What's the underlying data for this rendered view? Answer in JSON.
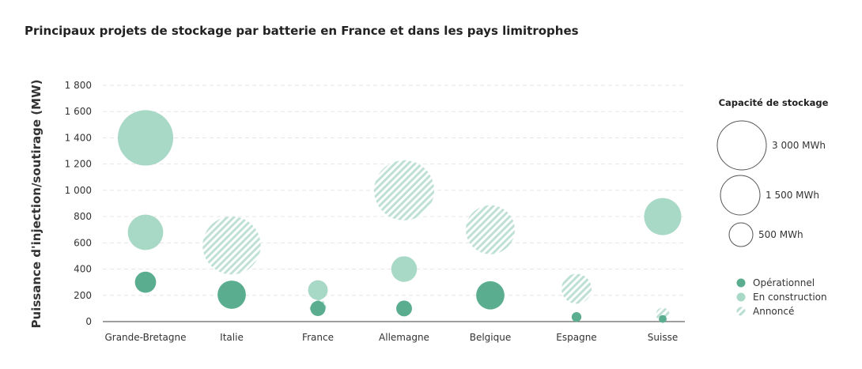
{
  "chart_data": {
    "type": "bubble",
    "title": "Principaux projets de stockage par batterie en France et dans les pays limitrophes",
    "ylabel": "Puissance d'injection/soutirage (MW)",
    "xlabel": "",
    "ylim": [
      0,
      1800
    ],
    "yticks": [
      0,
      200,
      400,
      600,
      800,
      1000,
      1200,
      1400,
      1600,
      1800
    ],
    "ytick_labels": [
      "0",
      "200",
      "400",
      "600",
      "800",
      "1 000",
      "1 200",
      "1 400",
      "1 600",
      "1 800"
    ],
    "grid": true,
    "categories": [
      "Grande-Bretagne",
      "Italie",
      "France",
      "Allemagne",
      "Belgique",
      "Espagne",
      "Suisse"
    ],
    "size_legend": {
      "title": "Capacité de stockage",
      "items": [
        {
          "capacity_mwh": 3000,
          "label": "3 000 MWh"
        },
        {
          "capacity_mwh": 1500,
          "label": "1 500 MWh"
        },
        {
          "capacity_mwh": 500,
          "label": "500 MWh"
        }
      ]
    },
    "legend_position": "right",
    "series": [
      {
        "name": "Opérationnel",
        "color": "#5aae8f",
        "style": "solid",
        "points": [
          {
            "category": "Grande-Bretagne",
            "power_mw": 300,
            "capacity_mwh": 450
          },
          {
            "category": "Italie",
            "power_mw": 205,
            "capacity_mwh": 650
          },
          {
            "category": "France",
            "power_mw": 100,
            "capacity_mwh": 200
          },
          {
            "category": "Allemagne",
            "power_mw": 100,
            "capacity_mwh": 220
          },
          {
            "category": "Belgique",
            "power_mw": 200,
            "capacity_mwh": 650
          },
          {
            "category": "Espagne",
            "power_mw": 35,
            "capacity_mwh": 60
          },
          {
            "category": "Suisse",
            "power_mw": 20,
            "capacity_mwh": 30
          }
        ]
      },
      {
        "name": "En construction",
        "color": "#a8d8c6",
        "style": "solid",
        "points": [
          {
            "category": "Grande-Bretagne",
            "power_mw": 1400,
            "capacity_mwh": 3500
          },
          {
            "category": "Grande-Bretagne",
            "power_mw": 680,
            "capacity_mwh": 1200
          },
          {
            "category": "France",
            "power_mw": 240,
            "capacity_mwh": 380
          },
          {
            "category": "Allemagne",
            "power_mw": 400,
            "capacity_mwh": 550
          },
          {
            "category": "Suisse",
            "power_mw": 800,
            "capacity_mwh": 1400
          }
        ]
      },
      {
        "name": "Annoncé",
        "color": "#a8d8c6",
        "style": "hatched",
        "points": [
          {
            "category": "Italie",
            "power_mw": 580,
            "capacity_mwh": 4000
          },
          {
            "category": "France",
            "power_mw": 110,
            "capacity_mwh": 250
          },
          {
            "category": "Allemagne",
            "power_mw": 1000,
            "capacity_mwh": 4500
          },
          {
            "category": "Belgique",
            "power_mw": 700,
            "capacity_mwh": 3000
          },
          {
            "category": "Espagne",
            "power_mw": 250,
            "capacity_mwh": 750
          },
          {
            "category": "Suisse",
            "power_mw": 55,
            "capacity_mwh": 150
          }
        ]
      }
    ]
  }
}
